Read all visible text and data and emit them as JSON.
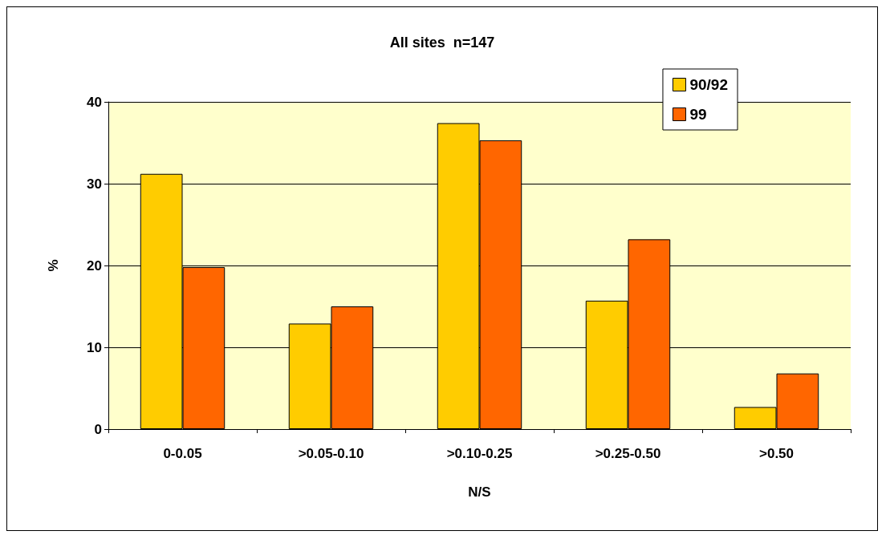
{
  "chart_data": {
    "type": "bar",
    "title": "All sites  n=147",
    "xlabel": "N/S",
    "ylabel": "%",
    "categories": [
      "0-0.05",
      ">0.05-0.10",
      ">0.10-0.25",
      ">0.25-0.50",
      ">0.50"
    ],
    "series": [
      {
        "name": "90/92",
        "color": "#ffcc00",
        "values": [
          31.2,
          12.9,
          37.4,
          15.7,
          2.7
        ]
      },
      {
        "name": "99",
        "color": "#ff6600",
        "values": [
          19.8,
          15.0,
          35.3,
          23.2,
          6.8
        ]
      }
    ],
    "ylim": [
      0,
      40
    ],
    "yticks": [
      0,
      10,
      20,
      30,
      40
    ],
    "grid": "y",
    "legend": "top right"
  }
}
